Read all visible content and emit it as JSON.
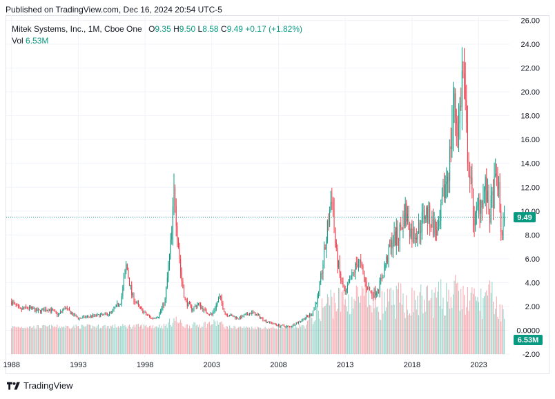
{
  "published": "Published on TradingView.com, Dec 16, 2024 20:54 UTC-5",
  "legend": {
    "symbol": "Mitek Systems, Inc., 1M, Cboe One",
    "o_label": "O",
    "o_value": "9.35",
    "h_label": "H",
    "h_value": "9.50",
    "l_label": "L",
    "l_value": "8.58",
    "c_label": "C",
    "c_value": "9.49",
    "change": "+0.17 (+1.82%)",
    "vol_label": "Vol",
    "vol_value": "6.53M"
  },
  "footer": {
    "brand": "TradingView"
  },
  "colors": {
    "up": "#089981",
    "down": "#f23645",
    "grid": "#f0f3fa",
    "last_price": "#089981"
  },
  "chart_data": {
    "type": "candlestick",
    "interval": "1M",
    "x_ticks": [
      "1988",
      "1993",
      "1998",
      "2003",
      "2008",
      "2013",
      "2018",
      "2023"
    ],
    "y_ticks": [
      "26.00",
      "24.00",
      "22.00",
      "20.00",
      "18.00",
      "16.00",
      "14.00",
      "12.00",
      "10.00",
      "8.00",
      "6.00",
      "4.00",
      "2.00",
      "0.0000",
      "-2.00"
    ],
    "ylim": [
      -2,
      26
    ],
    "last_price": 9.49,
    "last_price_label": "9.49",
    "last_volume_label": "6.53M",
    "price_path": [
      [
        1988.0,
        2.4
      ],
      [
        1988.6,
        1.7
      ],
      [
        1989.2,
        1.9
      ],
      [
        1990.0,
        1.6
      ],
      [
        1990.8,
        1.8
      ],
      [
        1991.5,
        1.3
      ],
      [
        1992.0,
        1.9
      ],
      [
        1992.5,
        1.4
      ],
      [
        1993.0,
        1.0
      ],
      [
        1994.0,
        1.2
      ],
      [
        1995.0,
        1.3
      ],
      [
        1995.5,
        1.5
      ],
      [
        1996.2,
        2.5
      ],
      [
        1996.6,
        5.5
      ],
      [
        1997.0,
        3.0
      ],
      [
        1997.5,
        2.0
      ],
      [
        1998.0,
        1.4
      ],
      [
        1998.5,
        1.0
      ],
      [
        1999.0,
        1.2
      ],
      [
        1999.5,
        2.5
      ],
      [
        2000.0,
        8.0
      ],
      [
        2000.2,
        12.0
      ],
      [
        2000.4,
        8.5
      ],
      [
        2000.7,
        4.5
      ],
      [
        2001.0,
        2.5
      ],
      [
        2001.5,
        1.8
      ],
      [
        2002.0,
        2.2
      ],
      [
        2002.5,
        1.6
      ],
      [
        2003.0,
        1.3
      ],
      [
        2003.6,
        2.8
      ],
      [
        2004.0,
        1.4
      ],
      [
        2005.0,
        1.0
      ],
      [
        2006.0,
        1.5
      ],
      [
        2006.5,
        1.2
      ],
      [
        2007.0,
        0.8
      ],
      [
        2008.0,
        0.4
      ],
      [
        2008.8,
        0.3
      ],
      [
        2009.5,
        0.7
      ],
      [
        2010.5,
        1.4
      ],
      [
        2011.0,
        3.0
      ],
      [
        2011.5,
        7.0
      ],
      [
        2012.0,
        11.5
      ],
      [
        2012.3,
        6.5
      ],
      [
        2012.7,
        4.0
      ],
      [
        2013.0,
        3.0
      ],
      [
        2013.5,
        4.5
      ],
      [
        2014.0,
        6.0
      ],
      [
        2014.5,
        4.0
      ],
      [
        2015.0,
        3.0
      ],
      [
        2015.5,
        3.5
      ],
      [
        2016.0,
        5.5
      ],
      [
        2016.5,
        7.5
      ],
      [
        2017.0,
        8.0
      ],
      [
        2017.5,
        10.0
      ],
      [
        2018.0,
        8.0
      ],
      [
        2018.5,
        8.5
      ],
      [
        2019.0,
        10.0
      ],
      [
        2019.5,
        9.0
      ],
      [
        2020.0,
        8.0
      ],
      [
        2020.3,
        11.0
      ],
      [
        2020.8,
        14.0
      ],
      [
        2021.1,
        19.0
      ],
      [
        2021.5,
        17.0
      ],
      [
        2021.8,
        22.0
      ],
      [
        2022.1,
        16.0
      ],
      [
        2022.4,
        12.0
      ],
      [
        2022.7,
        9.0
      ],
      [
        2023.0,
        10.5
      ],
      [
        2023.5,
        12.0
      ],
      [
        2023.8,
        9.5
      ],
      [
        2024.1,
        11.5
      ],
      [
        2024.4,
        13.0
      ],
      [
        2024.7,
        8.0
      ],
      [
        2024.95,
        9.49
      ]
    ],
    "volume_path": [
      [
        1988.0,
        0.3
      ],
      [
        1999.5,
        0.4
      ],
      [
        2000.2,
        1.0
      ],
      [
        2001.0,
        0.4
      ],
      [
        2003.6,
        0.7
      ],
      [
        2004.0,
        0.3
      ],
      [
        2008.0,
        0.2
      ],
      [
        2010.0,
        0.4
      ],
      [
        2011.0,
        1.8
      ],
      [
        2012.0,
        2.8
      ],
      [
        2013.0,
        2.6
      ],
      [
        2014.0,
        3.0
      ],
      [
        2015.0,
        2.5
      ],
      [
        2016.0,
        2.4
      ],
      [
        2017.0,
        2.8
      ],
      [
        2018.0,
        2.6
      ],
      [
        2019.0,
        2.8
      ],
      [
        2020.0,
        2.9
      ],
      [
        2021.0,
        3.4
      ],
      [
        2022.0,
        2.8
      ],
      [
        2023.0,
        2.6
      ],
      [
        2024.0,
        3.0
      ],
      [
        2024.95,
        1.2
      ]
    ]
  }
}
